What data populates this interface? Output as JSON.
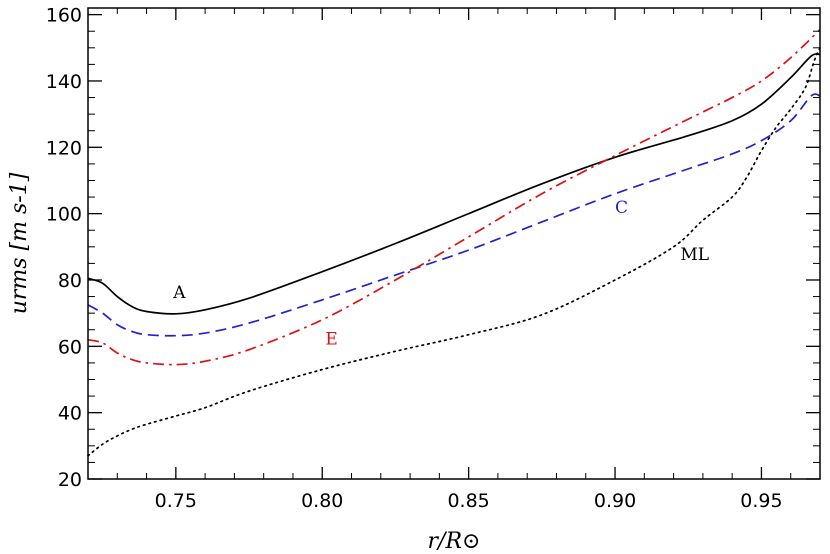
{
  "chart_data": {
    "type": "line",
    "title": "",
    "xlabel": "r/R⊙",
    "ylabel": "urms [m s-1]",
    "xlim": [
      0.72,
      0.97
    ],
    "ylim": [
      20,
      162
    ],
    "xticks": [
      "0.75",
      "0.80",
      "0.85",
      "0.90",
      "0.95"
    ],
    "xtick_values": [
      0.75,
      0.8,
      0.85,
      0.9,
      0.95
    ],
    "yticks": [
      "20",
      "40",
      "60",
      "80",
      "100",
      "120",
      "140",
      "160"
    ],
    "ytick_values": [
      20,
      40,
      60,
      80,
      100,
      120,
      140,
      160
    ],
    "grid": false,
    "legend": "none",
    "series": [
      {
        "name": "A",
        "color": "#000000",
        "dash": "solid",
        "x": [
          0.72,
          0.725,
          0.73,
          0.735,
          0.74,
          0.75,
          0.76,
          0.775,
          0.8,
          0.825,
          0.85,
          0.875,
          0.9,
          0.925,
          0.94,
          0.95,
          0.96,
          0.967,
          0.97
        ],
        "y": [
          80.5,
          79,
          75,
          72,
          70.5,
          69.8,
          71,
          74.5,
          82.5,
          91,
          100,
          109,
          117,
          123.5,
          128,
          133,
          141,
          147.5,
          148
        ]
      },
      {
        "name": "C",
        "color": "#2222cc",
        "dash": "dashed",
        "x": [
          0.72,
          0.725,
          0.73,
          0.735,
          0.74,
          0.75,
          0.76,
          0.775,
          0.8,
          0.825,
          0.85,
          0.875,
          0.9,
          0.925,
          0.94,
          0.95,
          0.96,
          0.967,
          0.97
        ],
        "y": [
          72.5,
          70,
          66.5,
          64.5,
          63.5,
          63.2,
          64,
          67,
          74,
          81.5,
          89,
          97.5,
          106,
          113.5,
          118,
          122,
          128,
          135.5,
          135.5
        ]
      },
      {
        "name": "E",
        "color": "#dd1111",
        "dash": "dash-dot",
        "x": [
          0.72,
          0.725,
          0.73,
          0.735,
          0.74,
          0.75,
          0.76,
          0.775,
          0.8,
          0.825,
          0.85,
          0.875,
          0.9,
          0.925,
          0.94,
          0.95,
          0.96,
          0.97
        ],
        "y": [
          62,
          61,
          58,
          56,
          55,
          54.5,
          55.5,
          59,
          68,
          80,
          93,
          106,
          117.5,
          128.5,
          135,
          140,
          147,
          155.5
        ]
      },
      {
        "name": "ML",
        "color": "#000000",
        "dash": "dotted",
        "x": [
          0.72,
          0.725,
          0.73,
          0.735,
          0.74,
          0.75,
          0.76,
          0.775,
          0.8,
          0.825,
          0.85,
          0.875,
          0.9,
          0.92,
          0.93,
          0.94,
          0.945,
          0.95,
          0.955,
          0.96,
          0.965,
          0.968,
          0.97
        ],
        "y": [
          27,
          30.5,
          33,
          35,
          36.5,
          39,
          41.5,
          46.5,
          53,
          58.5,
          63.5,
          69.5,
          80,
          90,
          98,
          105,
          111,
          119,
          126,
          131.5,
          138,
          146,
          150
        ]
      }
    ],
    "annotations": [
      {
        "text": "A",
        "x": 0.7512,
        "y": 74.5,
        "color": "#000000"
      },
      {
        "text": "C",
        "x": 0.9022,
        "y": 100.2,
        "color": "#2222cc"
      },
      {
        "text": "E",
        "x": 0.8032,
        "y": 60.5,
        "color": "#dd1111"
      },
      {
        "text": "ML",
        "x": 0.9272,
        "y": 86.0,
        "color": "#000000"
      }
    ]
  }
}
